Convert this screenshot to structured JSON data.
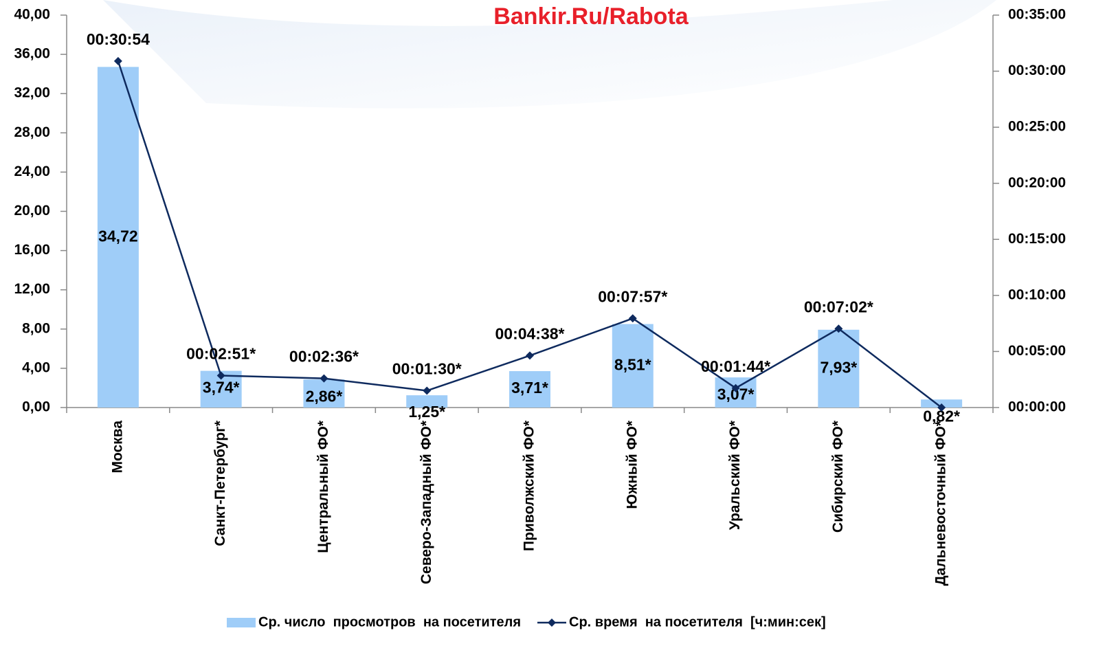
{
  "chart_data": {
    "type": "bar",
    "title": "Bankir.Ru/Rabota",
    "categories": [
      "Москва",
      "Санкт-Петербург*",
      "Центральный ФО*",
      "Северо-Западный ФО*",
      "Приволжский ФО*",
      "Южный ФО*",
      "Уральский ФО*",
      "Сибирский ФО*",
      "Дальневосточный ФО*"
    ],
    "series": [
      {
        "name": "Ср. число  просмотров  на посетителя",
        "color": "#9fcdf8",
        "type": "bar",
        "values": [
          34.72,
          3.74,
          2.86,
          1.25,
          3.71,
          8.51,
          3.07,
          7.93,
          0.82
        ],
        "value_labels": [
          "34,72",
          "3,74*",
          "2,86*",
          "1,25*",
          "3,71*",
          "8,51*",
          "3,07*",
          "7,93*",
          "0,82*"
        ]
      },
      {
        "name": "Ср. время  на посетителя  [ч:мин:сек]",
        "color": "#0e2a5e",
        "type": "line",
        "axis": "y2",
        "values": [
          1854,
          171,
          156,
          90,
          278,
          477,
          104,
          422,
          0
        ],
        "value_labels": [
          "00:30:54",
          "00:02:51*",
          "00:02:36*",
          "00:01:30*",
          "00:04:38*",
          "00:07:57*",
          "00:01:44*",
          "00:07:02*",
          null
        ]
      }
    ],
    "ylim": [
      0,
      40
    ],
    "yticks": [
      {
        "value": 0,
        "label": "0,00"
      },
      {
        "value": 4,
        "label": "4,00"
      },
      {
        "value": 8,
        "label": "8,00"
      },
      {
        "value": 12,
        "label": "12,00"
      },
      {
        "value": 16,
        "label": "16,00"
      },
      {
        "value": 20,
        "label": "20,00"
      },
      {
        "value": 24,
        "label": "24,00"
      },
      {
        "value": 28,
        "label": "28,00"
      },
      {
        "value": 32,
        "label": "32,00"
      },
      {
        "value": 36,
        "label": "36,00"
      },
      {
        "value": 40,
        "label": "40,00"
      }
    ],
    "y2lim": [
      0,
      2100
    ],
    "y2ticks": [
      {
        "value": 0,
        "label": "00:00:00"
      },
      {
        "value": 300,
        "label": "00:05:00"
      },
      {
        "value": 600,
        "label": "00:10:00"
      },
      {
        "value": 900,
        "label": "00:15:00"
      },
      {
        "value": 1200,
        "label": "00:20:00"
      },
      {
        "value": 1500,
        "label": "00:25:00"
      },
      {
        "value": 1800,
        "label": "00:30:00"
      },
      {
        "value": 2100,
        "label": "00:35:00"
      }
    ],
    "legend": "bottom"
  }
}
